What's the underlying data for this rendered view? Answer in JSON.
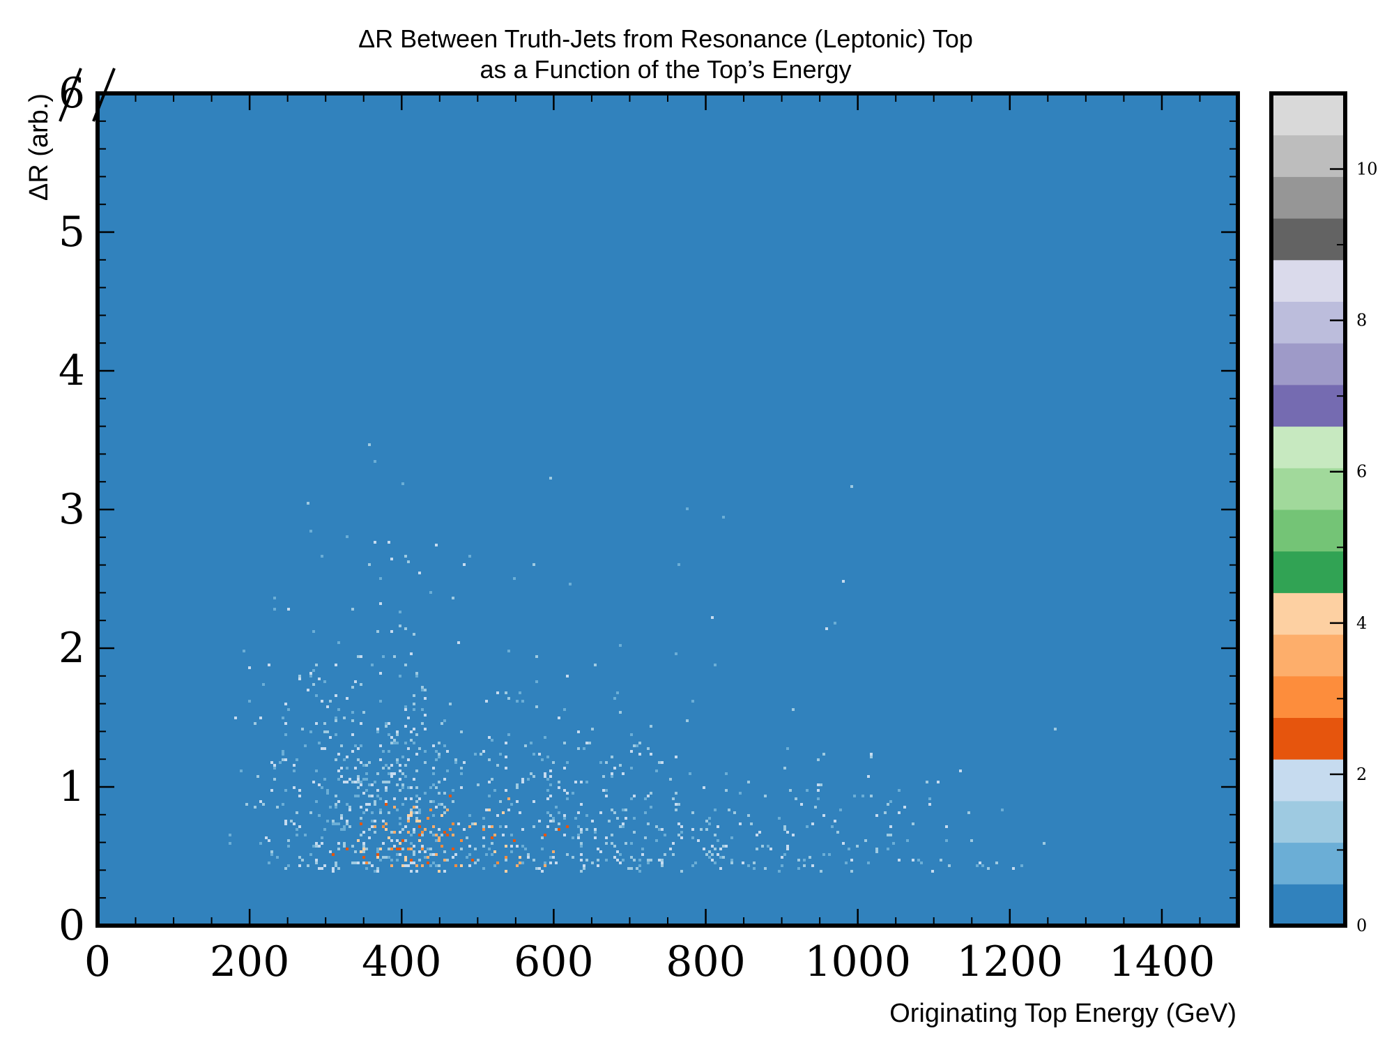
{
  "chart_data": {
    "type": "heatmap",
    "title_line1": "ΔR Between Truth-Jets from Resonance (Leptonic) Top",
    "title_line2": "as a Function of the Top’s Energy",
    "xlabel": "Originating Top Energy (GeV)",
    "ylabel": "ΔR (arb.)",
    "xlim": [
      0,
      1500
    ],
    "ylim": [
      0,
      6
    ],
    "x_ticks": [
      "0",
      "200",
      "400",
      "600",
      "800",
      "1000",
      "1200",
      "1400"
    ],
    "y_ticks": [
      "0",
      "1",
      "2",
      "3",
      "4",
      "5",
      "6"
    ],
    "colorbar": {
      "range": [
        0,
        11
      ],
      "ticks": [
        "0",
        "2",
        "4",
        "6",
        "8",
        "10"
      ],
      "colors": [
        "#3182bd",
        "#6baed6",
        "#9ecae1",
        "#c6dbef",
        "#e6550d",
        "#fd8d3c",
        "#fdae6b",
        "#fdd0a2",
        "#31a354",
        "#74c476",
        "#a1d99b",
        "#c7e9c0",
        "#756bb1",
        "#9e9ac8",
        "#bcbddc",
        "#dadaeb",
        "#636363",
        "#969696",
        "#bdbdbd",
        "#d9d9d9"
      ]
    },
    "background_color": "#3182bd",
    "distribution": {
      "description_points": [
        {
          "energy": 450,
          "dr": 0.6,
          "density": "peak"
        },
        {
          "energy": 300,
          "dr": 1.5,
          "density": "medium"
        },
        {
          "energy": 900,
          "dr": 0.6,
          "density": "medium"
        },
        {
          "energy": 1400,
          "dr": 0.6,
          "density": "low"
        },
        {
          "energy": 400,
          "dr": 3.0,
          "density": "low"
        }
      ],
      "min_dr": 0.4,
      "min_energy": 170
    }
  }
}
